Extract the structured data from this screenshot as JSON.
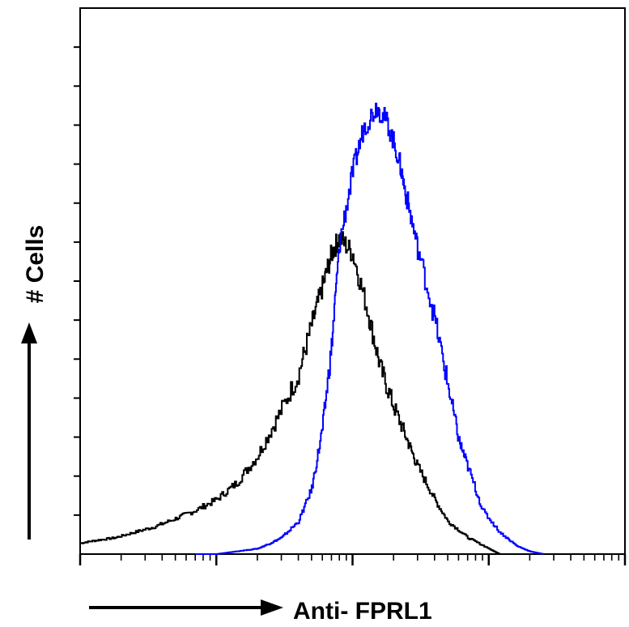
{
  "chart_data": {
    "type": "line",
    "title": "",
    "xlabel": "Anti- FPRL1",
    "ylabel": "# Cells",
    "x_scale": "log",
    "xlim": [
      1,
      10000
    ],
    "ylim": [
      0,
      100
    ],
    "grid": false,
    "series": [
      {
        "color": "#000000",
        "x": [
          1,
          1.3,
          1.8,
          2.5,
          3.5,
          5,
          7,
          10,
          14,
          20,
          28,
          40,
          50,
          60,
          70,
          80,
          100,
          130,
          160,
          200,
          250,
          300,
          400,
          500,
          700,
          1000,
          1200
        ],
        "y": [
          2,
          2.5,
          3,
          4,
          5,
          6.5,
          8,
          10,
          13,
          18,
          25,
          33,
          42,
          49,
          55,
          58,
          55,
          44,
          34,
          27,
          21,
          16,
          10,
          6,
          3,
          1,
          0
        ]
      },
      {
        "color": "#0000ff",
        "x": [
          7,
          10,
          14,
          20,
          25,
          30,
          40,
          50,
          60,
          70,
          80,
          100,
          120,
          150,
          180,
          220,
          250,
          300,
          400,
          500,
          600,
          700,
          900,
          1200,
          1600,
          2000,
          2500
        ],
        "y": [
          0,
          0,
          0.5,
          1,
          2,
          3,
          6,
          12,
          23,
          38,
          57,
          70,
          78,
          82,
          79,
          72,
          65,
          56,
          43,
          31,
          21,
          16,
          8,
          4,
          1.5,
          0.5,
          0
        ]
      }
    ]
  }
}
